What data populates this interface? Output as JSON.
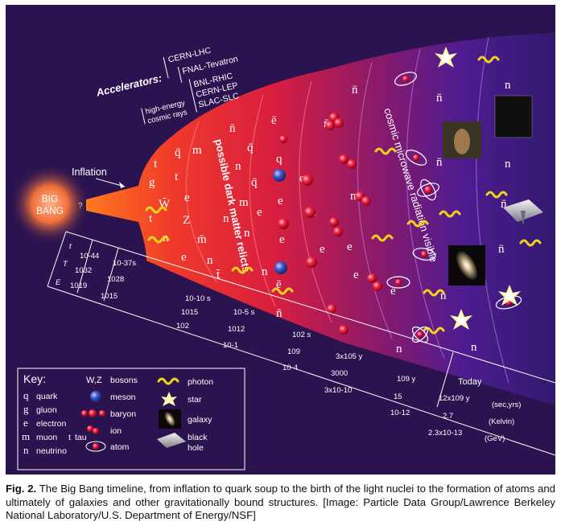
{
  "big_bang": {
    "line1": "BIG",
    "line2": "BANG",
    "mark": "?"
  },
  "inflation": "Inflation",
  "accelerators": {
    "title": "Accelerators:",
    "items": [
      "CERN-LHC",
      "FNAL-Tevatron",
      "BNL-RHIC",
      "CERN-LEP",
      "SLAC-SLC"
    ],
    "cosmic1": "high-energy",
    "cosmic2": "cosmic rays"
  },
  "bands": {
    "dark_matter": "possible dark matter relicts",
    "cmb": "cosmic microwave radiation visible"
  },
  "particles": {
    "q": "q",
    "qbar": "q̄",
    "g": "g",
    "e": "e",
    "ebar": "ē",
    "n": "n",
    "nbar": "n̄",
    "m": "m",
    "mbar": "m̄",
    "t": "t",
    "tbar": "t̄",
    "W": "W",
    "Wbar": "W̄",
    "Z": "Z",
    "qq": "qq"
  },
  "timeline": {
    "row_labels": [
      "t",
      "T",
      "E"
    ],
    "col0": [
      "10-44",
      "1032",
      "1019"
    ],
    "col1": [
      "10-37s",
      "1028",
      "1015"
    ],
    "col2": [
      "10-10 s",
      "1015",
      "102"
    ],
    "col3": [
      "10-5 s",
      "1012",
      "10-1"
    ],
    "col4": [
      "102 s",
      "109",
      "10-4"
    ],
    "col5": [
      "3x105 y",
      "3000",
      "3x10-10"
    ],
    "col6": [
      "109 y",
      "15",
      "10-12"
    ],
    "col7": [
      "12x109 y",
      "2.7",
      "2.3x10-13"
    ],
    "units": [
      "(sec,yrs)",
      "(Kelvin)",
      "(GeV)"
    ],
    "today": "Today"
  },
  "key": {
    "title": "Key:",
    "col1": [
      {
        "sym": "q",
        "label": "quark"
      },
      {
        "sym": "g",
        "label": "gluon"
      },
      {
        "sym": "e",
        "label": "electron"
      },
      {
        "sym": "m",
        "label": "muon",
        "extra_sym": "t",
        "extra_label": "tau"
      },
      {
        "sym": "n",
        "label": "neutrino"
      }
    ],
    "col2": [
      {
        "sym": "W,Z",
        "label": "bosons"
      },
      {
        "label": "meson"
      },
      {
        "label": "baryon"
      },
      {
        "label": "ion"
      },
      {
        "label": "atom"
      }
    ],
    "col3": [
      {
        "label": "photon"
      },
      {
        "label": "star"
      },
      {
        "label": "galaxy"
      },
      {
        "label": "black",
        "label2": "hole"
      }
    ]
  },
  "caption": {
    "bold": "Fig. 2.",
    "text": " The Big Bang timeline, from inflation to quark soup to the birth of the light nuclei to the formation of atoms and ultimately of galaxies and other gravitationally bound structures. [Image: Particle Data Group/Lawrence Berkeley National Laboratory/U.S. Department of Energy/NSF]"
  },
  "colors": {
    "background": "#2b1350",
    "red": "#e6203a",
    "orange": "#ff6a1a",
    "purple": "#5a1e94",
    "photon": "#f3d21c"
  }
}
